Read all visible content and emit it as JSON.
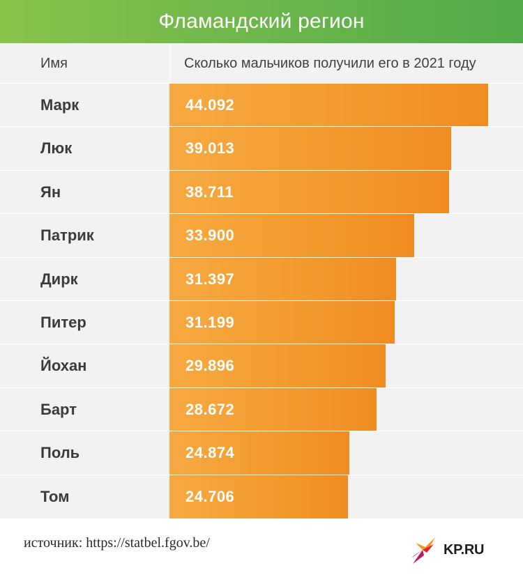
{
  "colors": {
    "title_bg": "#6fb74b",
    "bar": "#f39a2d",
    "table_bg": "#f2f2f2",
    "logo_red": "#e3242b",
    "logo_orange": "#f7941d"
  },
  "title": "Фламандский регион",
  "headers": {
    "name": "Имя",
    "value": "Сколько мальчиков получили его в 2021 году"
  },
  "chart_data": {
    "type": "bar",
    "orientation": "horizontal",
    "title": "Фламандский регион",
    "categories": [
      "Марк",
      "Люк",
      "Ян",
      "Патрик",
      "Дирк",
      "Питер",
      "Йохан",
      "Барт",
      "Поль",
      "Том"
    ],
    "values": [
      44092,
      39013,
      38711,
      33900,
      31397,
      31199,
      29896,
      28672,
      24874,
      24706
    ],
    "value_labels": [
      "44.092",
      "39.013",
      "38.711",
      "33.900",
      "31.397",
      "31.199",
      "29.896",
      "28.672",
      "24.874",
      "24.706"
    ],
    "grid": false,
    "legend": "none"
  },
  "source": "источник: https://statbel.fgov.be/",
  "logo": {
    "text": "KP.RU",
    "icon": "kp-bird-logo-icon"
  }
}
